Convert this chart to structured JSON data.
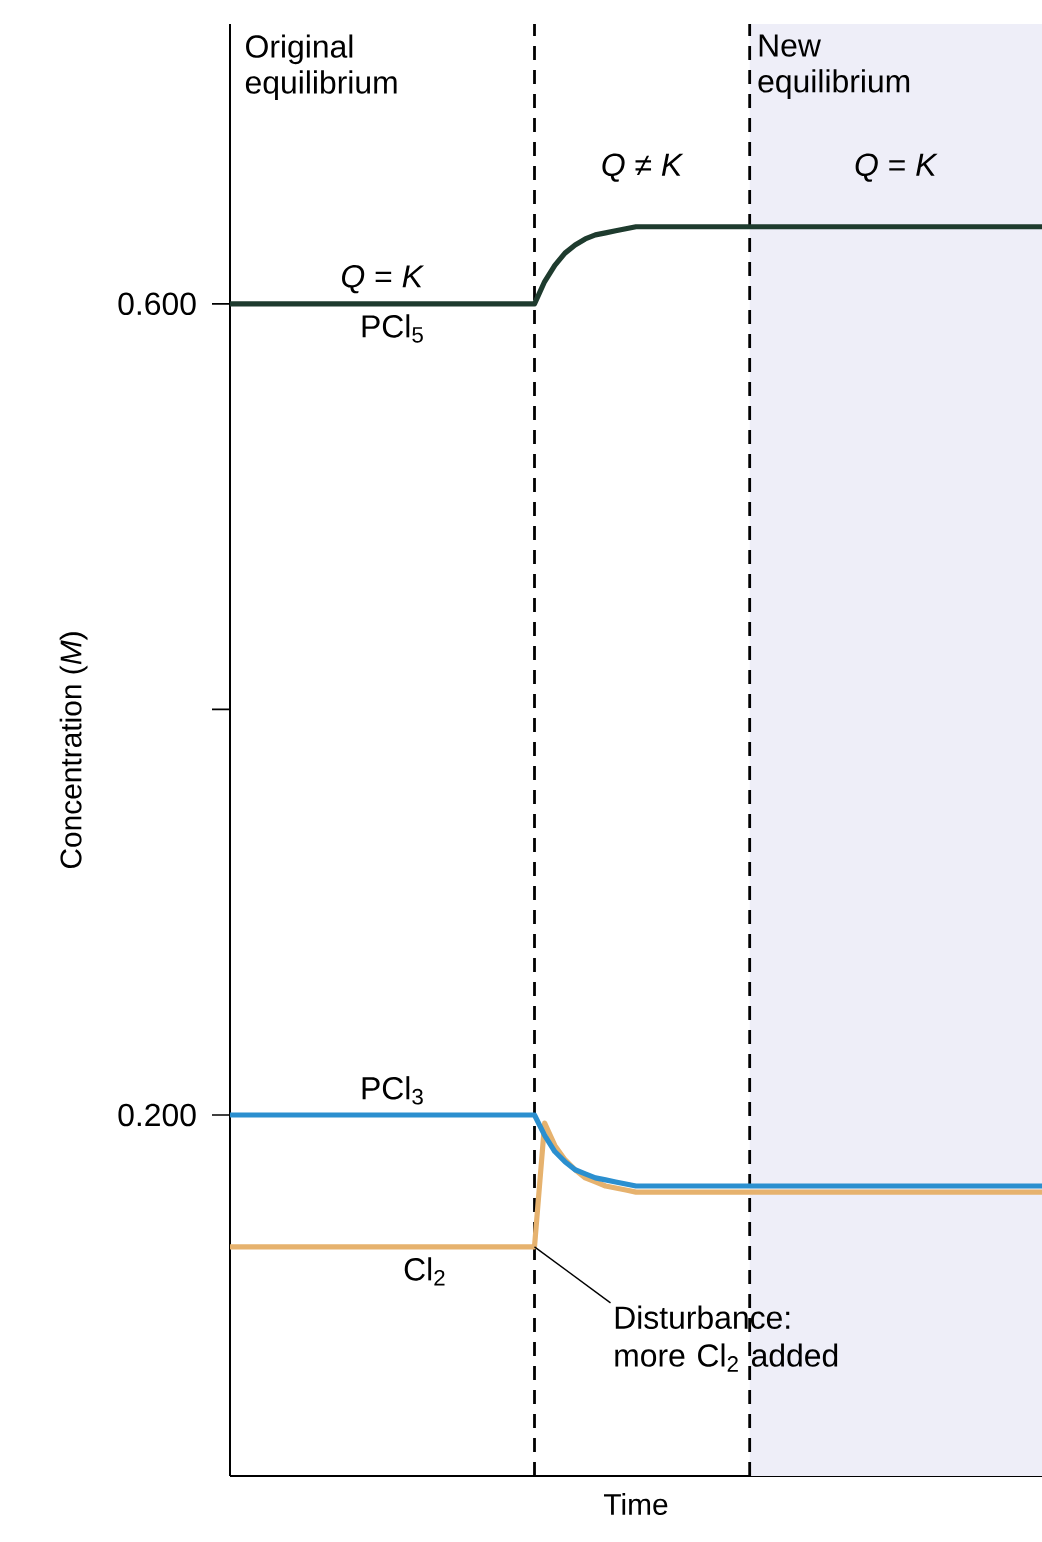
{
  "chart_data": {
    "type": "line",
    "xlabel": "Time",
    "ylabel": "Concentration (*M*)",
    "categories": [
      null,
      null,
      null,
      null,
      null,
      null,
      null,
      null,
      null,
      null,
      null,
      null,
      null,
      null,
      null,
      null,
      null,
      null,
      null,
      null,
      null,
      null,
      null,
      null,
      null,
      null,
      null,
      null,
      null,
      null,
      null,
      null,
      null,
      null,
      null,
      null,
      null,
      null,
      null,
      null,
      null,
      null,
      null,
      null,
      null,
      null,
      null,
      null,
      null,
      null,
      null,
      null,
      null,
      null,
      null,
      null,
      null,
      null,
      null,
      null,
      null,
      null,
      null,
      null,
      null,
      null,
      null,
      null,
      null,
      null,
      null,
      null,
      null,
      null,
      null,
      null,
      null,
      null,
      null,
      null,
      null
    ],
    "ylim": [
      0.022,
      0.738
    ],
    "yticks": [
      {
        "value": 0.2,
        "label": "0.200"
      },
      {
        "value": 0.4,
        "label": null
      },
      {
        "value": 0.6,
        "label": "0.600"
      }
    ],
    "tick_labels": "y",
    "marker": "none",
    "line_style": "solid",
    "series": [
      {
        "name": "Cl$_{2}$",
        "color": "#e6b26e",
        "values": [
          0.135,
          0.135,
          0.135,
          0.135,
          0.135,
          0.135,
          0.135,
          0.135,
          0.135,
          0.135,
          0.135,
          0.135,
          0.135,
          0.135,
          0.135,
          0.135,
          0.135,
          0.135,
          0.135,
          0.135,
          0.135,
          0.135,
          0.135,
          0.135,
          0.135,
          0.135,
          0.135,
          0.135,
          0.135,
          0.135,
          0.135,
          0.196,
          0.185,
          0.178,
          0.173,
          0.169,
          0.167,
          0.165,
          0.164,
          0.163,
          0.162,
          0.162,
          0.162,
          0.162,
          0.162,
          0.162,
          0.162,
          0.162,
          0.162,
          0.162,
          0.162,
          0.162,
          0.162,
          0.162,
          0.162,
          0.162,
          0.162,
          0.162,
          0.162,
          0.162,
          0.162,
          0.162,
          0.162,
          0.162,
          0.162,
          0.162,
          0.162,
          0.162,
          0.162,
          0.162,
          0.162,
          0.162,
          0.162,
          0.162,
          0.162,
          0.162,
          0.162,
          0.162,
          0.162,
          0.162,
          0.162
        ]
      },
      {
        "name": "PCl$_{3}$",
        "color": "#2b8fcf",
        "values": [
          0.2,
          0.2,
          0.2,
          0.2,
          0.2,
          0.2,
          0.2,
          0.2,
          0.2,
          0.2,
          0.2,
          0.2,
          0.2,
          0.2,
          0.2,
          0.2,
          0.2,
          0.2,
          0.2,
          0.2,
          0.2,
          0.2,
          0.2,
          0.2,
          0.2,
          0.2,
          0.2,
          0.2,
          0.2,
          0.2,
          0.2,
          0.19,
          0.182,
          0.177,
          0.173,
          0.171,
          0.169,
          0.168,
          0.167,
          0.166,
          0.165,
          0.165,
          0.165,
          0.165,
          0.165,
          0.165,
          0.165,
          0.165,
          0.165,
          0.165,
          0.165,
          0.165,
          0.165,
          0.165,
          0.165,
          0.165,
          0.165,
          0.165,
          0.165,
          0.165,
          0.165,
          0.165,
          0.165,
          0.165,
          0.165,
          0.165,
          0.165,
          0.165,
          0.165,
          0.165,
          0.165,
          0.165,
          0.165,
          0.165,
          0.165,
          0.165,
          0.165,
          0.165,
          0.165,
          0.165,
          0.165
        ]
      },
      {
        "name": "PCl$_{5}$",
        "color": "#1e3b2e",
        "values": [
          0.6,
          0.6,
          0.6,
          0.6,
          0.6,
          0.6,
          0.6,
          0.6,
          0.6,
          0.6,
          0.6,
          0.6,
          0.6,
          0.6,
          0.6,
          0.6,
          0.6,
          0.6,
          0.6,
          0.6,
          0.6,
          0.6,
          0.6,
          0.6,
          0.6,
          0.6,
          0.6,
          0.6,
          0.6,
          0.6,
          0.6,
          0.611,
          0.619,
          0.625,
          0.629,
          0.632,
          0.634,
          0.635,
          0.636,
          0.637,
          0.638,
          0.638,
          0.638,
          0.638,
          0.638,
          0.638,
          0.638,
          0.638,
          0.638,
          0.638,
          0.638,
          0.638,
          0.638,
          0.638,
          0.638,
          0.638,
          0.638,
          0.638,
          0.638,
          0.638,
          0.638,
          0.638,
          0.638,
          0.638,
          0.638,
          0.638,
          0.638,
          0.638,
          0.638,
          0.638,
          0.638,
          0.638,
          0.638,
          0.638,
          0.638,
          0.638,
          0.638,
          0.638,
          0.638,
          0.638,
          0.638
        ]
      }
    ],
    "annotations": [
      "Original equilibrium",
      "New equilibrium",
      "*Q* ≠ *K*",
      "*Q* = *K*",
      "*Q* = *K*",
      "Disturbance: more Cl$_{2}$ added"
    ]
  }
}
